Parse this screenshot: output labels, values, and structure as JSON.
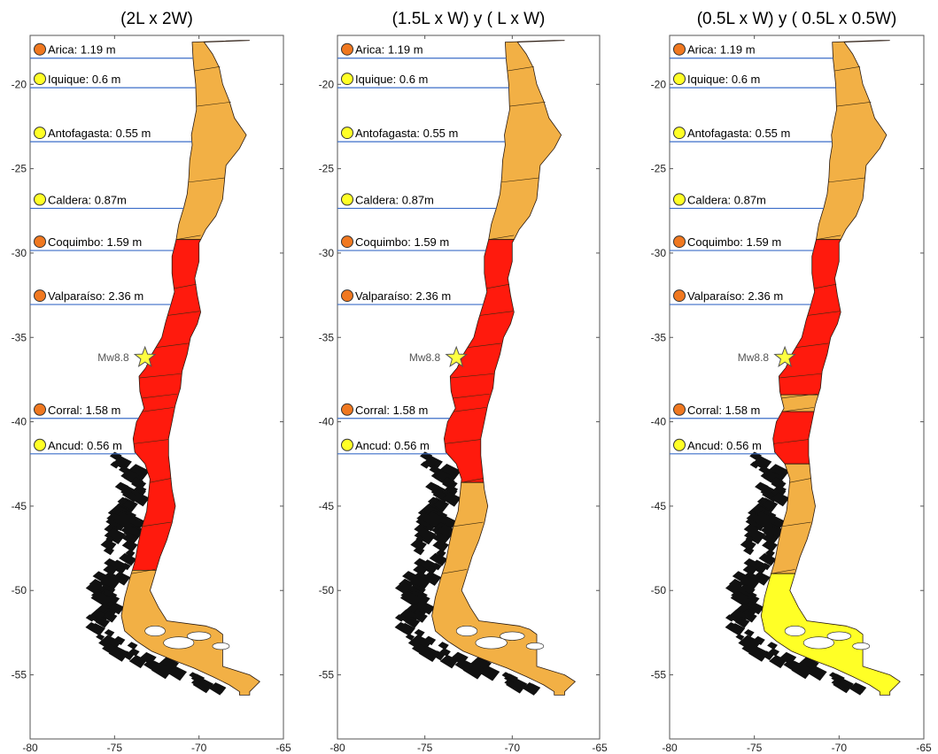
{
  "colors": {
    "low": "#f2b045",
    "high": "#ff1a0d",
    "minimal": "#ffff26",
    "island": "#111111",
    "station_high": "#f07820",
    "station_low": "#ffff26",
    "star": "#ffff40",
    "lat_line": "#3c6ec8"
  },
  "epicenter": {
    "lon": -73.2,
    "lat": -36.2,
    "label": "Mw8.8"
  },
  "stations": [
    {
      "name": "Arica",
      "lat": -18.45,
      "label": "Arica: 1.19 m",
      "level": "high"
    },
    {
      "name": "Iquique",
      "lat": -20.2,
      "label": "Iquique: 0.6 m",
      "level": "low"
    },
    {
      "name": "Antofagasta",
      "lat": -23.4,
      "label": "Antofagasta: 0.55 m",
      "level": "low"
    },
    {
      "name": "Caldera",
      "lat": -27.35,
      "label": "Caldera: 0.87m",
      "level": "low"
    },
    {
      "name": "Coquimbo",
      "lat": -29.85,
      "label": "Coquimbo: 1.59 m",
      "level": "high"
    },
    {
      "name": "Valparaíso",
      "lat": -33.05,
      "label": "Valparaíso: 2.36 m",
      "level": "high"
    },
    {
      "name": "Corral",
      "lat": -39.8,
      "label": "Corral: 1.58 m",
      "level": "high"
    },
    {
      "name": "Ancud",
      "lat": -41.9,
      "label": "Ancud: 0.56 m",
      "level": "low"
    }
  ],
  "chart_data": [
    {
      "type": "map",
      "title": "(2L x 2W)",
      "xticks": [
        -80,
        -75,
        -70,
        -65
      ],
      "yticks": [
        -20,
        -25,
        -30,
        -35,
        -40,
        -45,
        -50,
        -55
      ],
      "xlim": [
        -80,
        -65
      ],
      "ylim": [
        -58.8,
        -17.1
      ],
      "regions": [
        {
          "lat_start": -17.4,
          "lat_end": -29.2,
          "level": "low"
        },
        {
          "lat_start": -29.2,
          "lat_end": -48.8,
          "level": "high"
        },
        {
          "lat_start": -48.8,
          "lat_end": -56.2,
          "level": "low"
        }
      ]
    },
    {
      "type": "map",
      "title": "(1.5L x W) y ( L x W)",
      "xticks": [
        -80,
        -75,
        -70,
        -65
      ],
      "yticks": [
        -20,
        -25,
        -30,
        -35,
        -40,
        -45,
        -50,
        -55
      ],
      "xlim": [
        -80,
        -65
      ],
      "ylim": [
        -58.8,
        -17.1
      ],
      "regions": [
        {
          "lat_start": -17.4,
          "lat_end": -29.2,
          "level": "low"
        },
        {
          "lat_start": -29.2,
          "lat_end": -43.6,
          "level": "high"
        },
        {
          "lat_start": -43.6,
          "lat_end": -56.2,
          "level": "low"
        }
      ]
    },
    {
      "type": "map",
      "title": "(0.5L x W) y ( 0.5L x 0.5W)",
      "xticks": [
        -80,
        -75,
        -70,
        -65
      ],
      "yticks": [
        -20,
        -25,
        -30,
        -35,
        -40,
        -45,
        -50,
        -55
      ],
      "xlim": [
        -80,
        -65
      ],
      "ylim": [
        -58.8,
        -17.1
      ],
      "regions": [
        {
          "lat_start": -17.4,
          "lat_end": -29.2,
          "level": "low"
        },
        {
          "lat_start": -29.2,
          "lat_end": -38.4,
          "level": "high"
        },
        {
          "lat_start": -38.4,
          "lat_end": -39.4,
          "level": "low"
        },
        {
          "lat_start": -39.4,
          "lat_end": -42.5,
          "level": "high"
        },
        {
          "lat_start": -42.5,
          "lat_end": -49.0,
          "level": "low"
        },
        {
          "lat_start": -49.0,
          "lat_end": -56.2,
          "level": "minimal"
        }
      ]
    }
  ]
}
